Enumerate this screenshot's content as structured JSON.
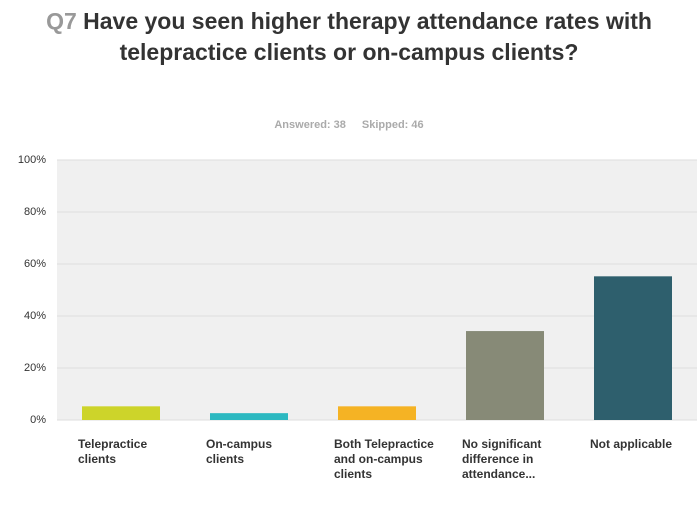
{
  "chart_data": {
    "type": "bar",
    "title_prefix": "Q7",
    "title": "Have you seen higher therapy attendance rates with telepractice clients or on-campus clients?",
    "answered": "Answered: 38",
    "skipped": "Skipped: 46",
    "categories": [
      "Telepractice clients",
      "On-campus clients",
      "Both Telepractice and on-campus clients",
      "No significant difference in attendance...",
      "Not applicable"
    ],
    "values": [
      5.26,
      2.63,
      5.26,
      34.21,
      55.26
    ],
    "colors": [
      "#cdd42a",
      "#2cb9c1",
      "#f5b324",
      "#878a77",
      "#2e5f6d"
    ],
    "ylim": [
      0,
      100
    ],
    "yticks": [
      {
        "value": 0,
        "label": "0%"
      },
      {
        "value": 20,
        "label": "20%"
      },
      {
        "value": 40,
        "label": "40%"
      },
      {
        "value": 60,
        "label": "60%"
      },
      {
        "value": 80,
        "label": "80%"
      },
      {
        "value": 100,
        "label": "100%"
      }
    ],
    "grid": true
  }
}
